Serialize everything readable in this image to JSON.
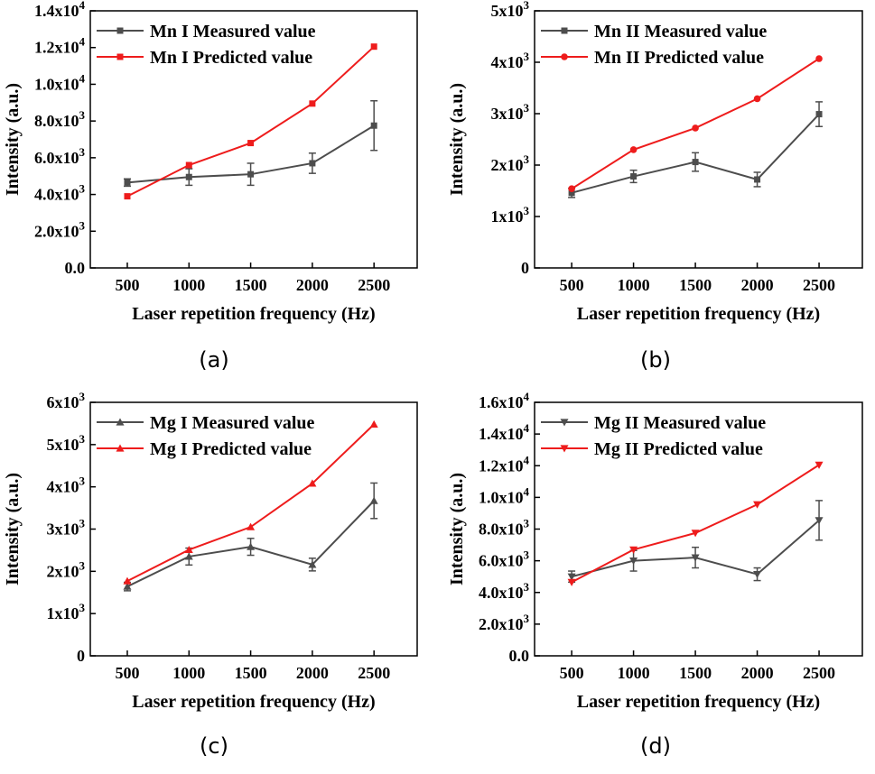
{
  "chart_data": [
    {
      "type": "line",
      "panel_label": "(a)",
      "xlabel": "Laser repetition frequency (Hz)",
      "ylabel": "Intensity (a.u.)",
      "x": [
        500,
        1000,
        1500,
        2000,
        2500
      ],
      "x_ticks": [
        "500",
        "1000",
        "1500",
        "2000",
        "2500"
      ],
      "xlim": [
        200,
        2850
      ],
      "ylim": [
        0,
        14000
      ],
      "y_ticks": [
        {
          "value": 0,
          "base": "0.0",
          "exp": ""
        },
        {
          "value": 2000,
          "base": "2.0x10",
          "exp": "3"
        },
        {
          "value": 4000,
          "base": "4.0x10",
          "exp": "3"
        },
        {
          "value": 6000,
          "base": "6.0x10",
          "exp": "3"
        },
        {
          "value": 8000,
          "base": "8.0x10",
          "exp": "3"
        },
        {
          "value": 10000,
          "base": "1.0x10",
          "exp": "4"
        },
        {
          "value": 12000,
          "base": "1.2x10",
          "exp": "4"
        },
        {
          "value": 14000,
          "base": "1.4x10",
          "exp": "4"
        }
      ],
      "legend_position": "top-left",
      "series": [
        {
          "name": "Mn I Measured value",
          "color": "#4d4d4d",
          "marker": "square",
          "values": [
            4650,
            4950,
            5100,
            5700,
            7750
          ],
          "errors": [
            200,
            450,
            600,
            550,
            1350
          ]
        },
        {
          "name": "Mn I Predicted value",
          "color": "#ee1c1c",
          "marker": "square",
          "values": [
            3900,
            5600,
            6800,
            8950,
            12050
          ]
        }
      ]
    },
    {
      "type": "line",
      "panel_label": "(b)",
      "xlabel": "Laser repetition frequency (Hz)",
      "ylabel": "Intensity (a.u.)",
      "x": [
        500,
        1000,
        1500,
        2000,
        2500
      ],
      "x_ticks": [
        "500",
        "1000",
        "1500",
        "2000",
        "2500"
      ],
      "xlim": [
        200,
        2850
      ],
      "ylim": [
        0,
        5000
      ],
      "y_ticks": [
        {
          "value": 0,
          "base": "0",
          "exp": ""
        },
        {
          "value": 1000,
          "base": "1x10",
          "exp": "3"
        },
        {
          "value": 2000,
          "base": "2x10",
          "exp": "3"
        },
        {
          "value": 3000,
          "base": "3x10",
          "exp": "3"
        },
        {
          "value": 4000,
          "base": "4x10",
          "exp": "3"
        },
        {
          "value": 5000,
          "base": "5x10",
          "exp": "3"
        }
      ],
      "legend_position": "top-left",
      "series": [
        {
          "name": "Mn II Measured value",
          "color": "#4d4d4d",
          "marker": "square",
          "values": [
            1460,
            1780,
            2060,
            1720,
            2990
          ],
          "errors": [
            90,
            120,
            180,
            140,
            240
          ]
        },
        {
          "name": "Mn II Predicted value",
          "color": "#ee1c1c",
          "marker": "circle",
          "values": [
            1540,
            2300,
            2720,
            3290,
            4070
          ]
        }
      ]
    },
    {
      "type": "line",
      "panel_label": "(c)",
      "xlabel": "Laser repetition frequency (Hz)",
      "ylabel": "Intensity (a.u.)",
      "x": [
        500,
        1000,
        1500,
        2000,
        2500
      ],
      "x_ticks": [
        "500",
        "1000",
        "1500",
        "2000",
        "2500"
      ],
      "xlim": [
        200,
        2850
      ],
      "ylim": [
        0,
        6000
      ],
      "y_ticks": [
        {
          "value": 0,
          "base": "0",
          "exp": ""
        },
        {
          "value": 1000,
          "base": "1x10",
          "exp": "3"
        },
        {
          "value": 2000,
          "base": "2x10",
          "exp": "3"
        },
        {
          "value": 3000,
          "base": "3x10",
          "exp": "3"
        },
        {
          "value": 4000,
          "base": "4x10",
          "exp": "3"
        },
        {
          "value": 5000,
          "base": "5x10",
          "exp": "3"
        },
        {
          "value": 6000,
          "base": "6x10",
          "exp": "3"
        }
      ],
      "legend_position": "top-left",
      "series": [
        {
          "name": "Mg I Measured value",
          "color": "#4d4d4d",
          "marker": "triangle-up",
          "values": [
            1640,
            2350,
            2580,
            2160,
            3670
          ],
          "errors": [
            100,
            200,
            200,
            150,
            420
          ]
        },
        {
          "name": "Mg I Predicted value",
          "color": "#ee1c1c",
          "marker": "triangle-up",
          "values": [
            1770,
            2510,
            3050,
            4080,
            5480
          ]
        }
      ]
    },
    {
      "type": "line",
      "panel_label": "(d)",
      "xlabel": "Laser repetition frequency (Hz)",
      "ylabel": "Intensity (a.u.)",
      "x": [
        500,
        1000,
        1500,
        2000,
        2500
      ],
      "x_ticks": [
        "500",
        "1000",
        "1500",
        "2000",
        "2500"
      ],
      "xlim": [
        200,
        2850
      ],
      "ylim": [
        0,
        16000
      ],
      "y_ticks": [
        {
          "value": 0,
          "base": "0.0",
          "exp": ""
        },
        {
          "value": 2000,
          "base": "2.0x10",
          "exp": "3"
        },
        {
          "value": 4000,
          "base": "4.0x10",
          "exp": "3"
        },
        {
          "value": 6000,
          "base": "6.0x10",
          "exp": "3"
        },
        {
          "value": 8000,
          "base": "8.0x10",
          "exp": "3"
        },
        {
          "value": 10000,
          "base": "1.0x10",
          "exp": "4"
        },
        {
          "value": 12000,
          "base": "1.2x10",
          "exp": "4"
        },
        {
          "value": 14000,
          "base": "1.4x10",
          "exp": "4"
        },
        {
          "value": 16000,
          "base": "1.6x10",
          "exp": "4"
        }
      ],
      "legend_position": "top-left",
      "series": [
        {
          "name": "Mg II Measured value",
          "color": "#4d4d4d",
          "marker": "triangle-down",
          "values": [
            5000,
            6000,
            6200,
            5150,
            8550
          ],
          "errors": [
            350,
            650,
            650,
            400,
            1250
          ]
        },
        {
          "name": "Mg II Predicted value",
          "color": "#ee1c1c",
          "marker": "triangle-down",
          "values": [
            4650,
            6700,
            7750,
            9550,
            12050
          ]
        }
      ]
    }
  ]
}
